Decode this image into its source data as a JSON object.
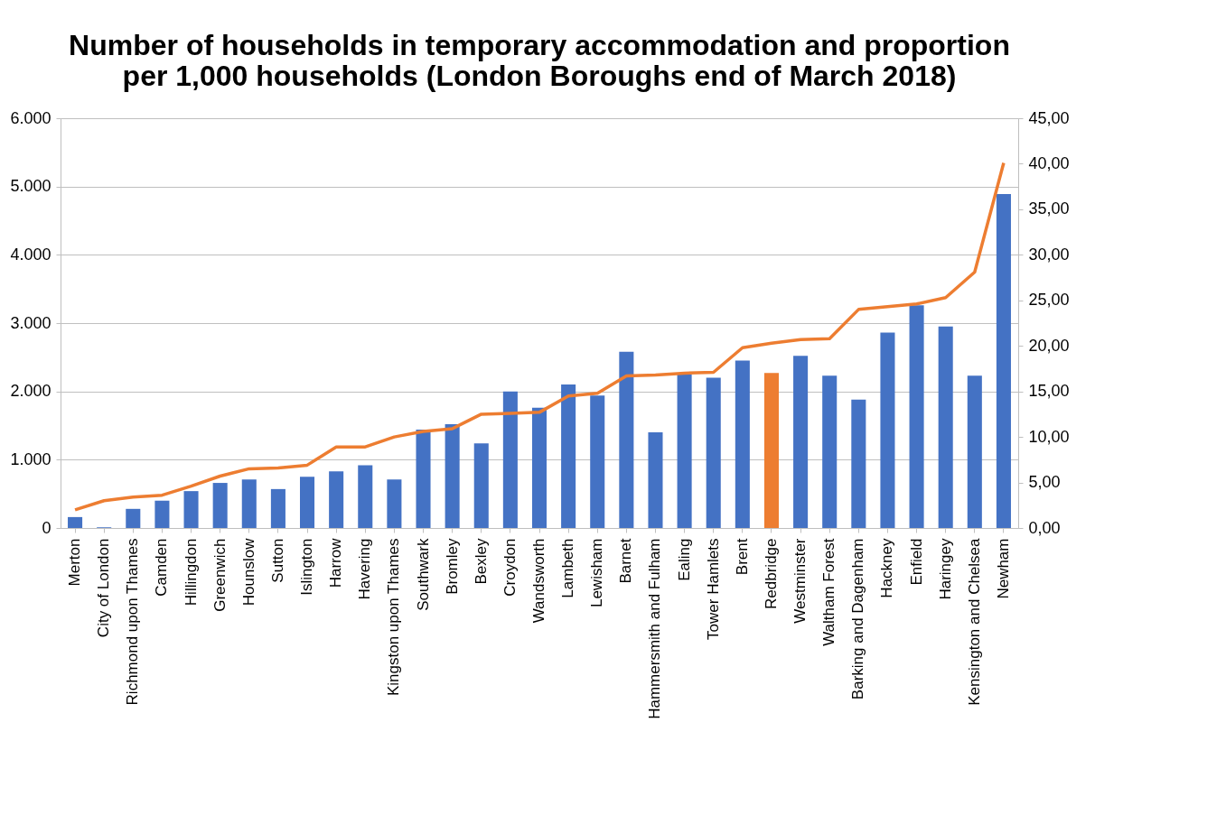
{
  "chart_data": {
    "type": "bar",
    "title": "Number of households in temporary accommodation and proportion per 1,000 households (London Boroughs end of March 2018)",
    "categories": [
      "Merton",
      "City of London",
      "Richmond upon Thames",
      "Camden",
      "Hillingdon",
      "Greenwich",
      "Hounslow",
      "Sutton",
      "Islington",
      "Harrow",
      "Havering",
      "Kingston upon Thames",
      "Southwark",
      "Bromley",
      "Bexley",
      "Croydon",
      "Wandsworth",
      "Lambeth",
      "Lewisham",
      "Barnet",
      "Hammersmith and Fulham",
      "Ealing",
      "Tower Hamlets",
      "Brent",
      "Redbridge",
      "Westminster",
      "Waltham Forest",
      "Barking and Dagenham",
      "Hackney",
      "Enfield",
      "Haringey",
      "Kensington and Chelsea",
      "Newham"
    ],
    "series": [
      {
        "colors": [
          "#4472c4",
          "#4472c4",
          "#4472c4",
          "#4472c4",
          "#4472c4",
          "#4472c4",
          "#4472c4",
          "#4472c4",
          "#4472c4",
          "#4472c4",
          "#4472c4",
          "#4472c4",
          "#4472c4",
          "#4472c4",
          "#4472c4",
          "#4472c4",
          "#4472c4",
          "#4472c4",
          "#4472c4",
          "#4472c4",
          "#4472c4",
          "#4472c4",
          "#4472c4",
          "#4472c4",
          "#ed7d31",
          "#4472c4",
          "#4472c4",
          "#4472c4",
          "#4472c4",
          "#4472c4",
          "#4472c4",
          "#4472c4",
          "#4472c4"
        ],
        "values": [
          160,
          10,
          280,
          400,
          540,
          660,
          710,
          570,
          750,
          830,
          920,
          710,
          1440,
          1520,
          1240,
          2000,
          1760,
          2100,
          1940,
          2580,
          1400,
          2250,
          2200,
          2450,
          2270,
          2520,
          2230,
          1880,
          2860,
          3260,
          2950,
          2230,
          4890
        ]
      },
      {
        "type": "line",
        "axis": "y2",
        "color": "#ed7d31",
        "values": [
          2.0,
          3.0,
          3.4,
          3.6,
          4.6,
          5.7,
          6.5,
          6.6,
          6.9,
          8.9,
          8.9,
          10.0,
          10.6,
          10.9,
          12.5,
          12.6,
          12.7,
          14.5,
          14.8,
          16.7,
          16.8,
          17.0,
          17.1,
          19.8,
          20.3,
          20.7,
          20.8,
          24.0,
          24.3,
          24.6,
          25.3,
          28.1,
          40.1
        ]
      }
    ],
    "ylim": [
      0,
      6000
    ],
    "yticks": [
      0,
      {
        "value": 1000,
        "label": "1.000"
      },
      {
        "value": 2000,
        "label": "2.000"
      },
      {
        "value": 3000,
        "label": "3.000"
      },
      {
        "value": 4000,
        "label": "4.000"
      },
      {
        "value": 5000,
        "label": "5.000"
      },
      {
        "value": 6000,
        "label": "6.000"
      }
    ],
    "y2lim": [
      0,
      45
    ],
    "y2ticks": [
      {
        "value": 0,
        "label": "0,00"
      },
      {
        "value": 5,
        "label": "5,00"
      },
      {
        "value": 10,
        "label": "10,00"
      },
      {
        "value": 15,
        "label": "15,00"
      },
      {
        "value": 20,
        "label": "20,00"
      },
      {
        "value": 25,
        "label": "25,00"
      },
      {
        "value": 30,
        "label": "30,00"
      },
      {
        "value": 35,
        "label": "35,00"
      },
      {
        "value": 40,
        "label": "40,00"
      },
      {
        "value": 45,
        "label": "45,00"
      }
    ],
    "grid": "y",
    "marker": "none",
    "line_style": "solid"
  }
}
